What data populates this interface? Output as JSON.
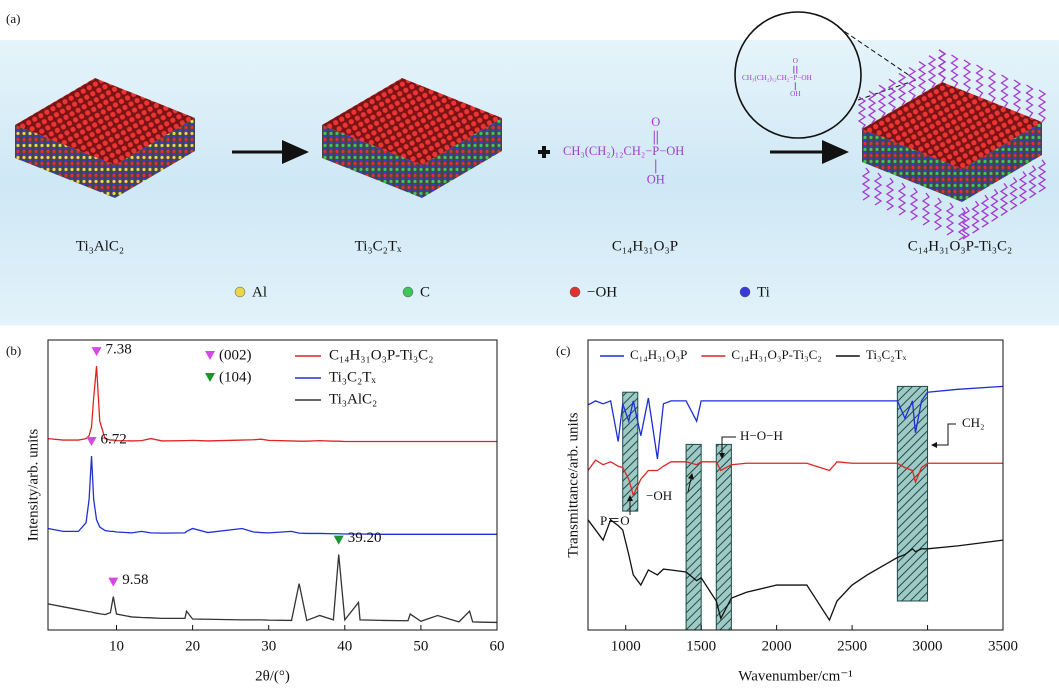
{
  "panel_labels": [
    "(a)",
    "(b)",
    "(c)"
  ],
  "schematic": {
    "compounds": [
      "Ti₃AlC₂",
      "Ti₃C₂Tₓ",
      "C₁₄H₃₁O₃P",
      "C₁₄H₃₁O₃P-Ti₃C₂"
    ],
    "molecule": {
      "chain": "CH₃(CH₂)₁₂CH₂−",
      "p": "P",
      "oh_right": "−OH",
      "top": "O",
      "bottom": "OH"
    },
    "atoms": [
      {
        "label": "Al",
        "color": "#e9d64c"
      },
      {
        "label": "C",
        "color": "#3fc65a"
      },
      {
        "label": "−OH",
        "color": "#e23030"
      },
      {
        "label": "Ti",
        "color": "#3a3ad8"
      }
    ]
  },
  "chart_data": [
    {
      "type": "line",
      "x_label": "2θ/(°)",
      "y_label": "Intensity/arb. units",
      "xlim": [
        1,
        60
      ],
      "ylim": [
        0,
        100
      ],
      "xticks": [
        10,
        20,
        30,
        40,
        50,
        60
      ],
      "legend": "upper right",
      "x": [
        1,
        3,
        5,
        6,
        6.4,
        6.72,
        7,
        7.38,
        7.8,
        8.5,
        9.2,
        9.58,
        10,
        12,
        13.3,
        14.5,
        16,
        19,
        19.2,
        20,
        22,
        26.5,
        28,
        29,
        30,
        33,
        34,
        35,
        36.7,
        38.5,
        39.2,
        40,
        41.8,
        42,
        45,
        48.3,
        48.6,
        50,
        52.2,
        55,
        56.4,
        56.8,
        58,
        60
      ],
      "series": [
        {
          "name": "C₁₄H₃₁O₃P-Ti₃C₂",
          "color": "#e02424",
          "values": [
            66,
            65.5,
            65.5,
            66,
            67,
            70,
            80,
            91,
            72,
            66,
            65.5,
            65.5,
            65.3,
            65.2,
            65.3,
            66,
            65.2,
            65.3,
            65.3,
            65.4,
            65.2,
            65.5,
            65.6,
            65.8,
            65.4,
            65.2,
            65.1,
            65.1,
            65.3,
            65.1,
            65.1,
            65,
            65,
            65,
            65,
            65,
            65,
            65,
            65,
            65,
            65,
            65,
            65,
            65
          ],
          "peaks": [
            {
              "value": 7.38,
              "color": "#d548e6"
            }
          ]
        },
        {
          "name": "Ti₃C₂Tₓ",
          "color": "#2030d0",
          "values": [
            35,
            34,
            34,
            37,
            45,
            60,
            45,
            38,
            35.5,
            34.3,
            34,
            34,
            33.8,
            33.5,
            34,
            33.5,
            33.4,
            33.5,
            34,
            35,
            33.6,
            35,
            33.8,
            33.6,
            33.5,
            34,
            33.4,
            33.3,
            33.3,
            33.2,
            33.2,
            33.1,
            33.1,
            33.1,
            33,
            33,
            33,
            33,
            33,
            33,
            33,
            33,
            33,
            33
          ],
          "peaks": [
            {
              "value": 6.72,
              "color": "#d548e6"
            }
          ]
        },
        {
          "name": "Ti₃AlC₂",
          "color": "#333333",
          "values": [
            9,
            8,
            7,
            6.5,
            6.3,
            6.2,
            6,
            5.8,
            5.6,
            5.3,
            6,
            11.5,
            5.5,
            4.5,
            4.3,
            4.2,
            4,
            4,
            6.5,
            3.8,
            3.7,
            3.5,
            3.5,
            3.5,
            3.4,
            3.3,
            16,
            3.3,
            5,
            3.5,
            26,
            3.5,
            9.5,
            3.5,
            3.3,
            3.2,
            5.5,
            3,
            5,
            2.8,
            6.5,
            2.8,
            2.7,
            2.6
          ],
          "peaks": [
            {
              "value": 9.58,
              "color": "#d548e6"
            },
            {
              "value": 39.2,
              "label": "39.20",
              "color": "#17962b"
            }
          ]
        }
      ],
      "peak_markers": [
        {
          "label": "(002)",
          "color": "#d548e6"
        },
        {
          "label": "(104)",
          "color": "#17962b"
        }
      ]
    },
    {
      "type": "line",
      "x_label": "Wavenumber/cm⁻¹",
      "y_label": "Transmittance/arb. units",
      "xlim": [
        750,
        3500
      ],
      "ylim": [
        0,
        100
      ],
      "xticks": [
        1000,
        1500,
        2000,
        2500,
        3000,
        3500
      ],
      "legend": "upper center",
      "x": [
        750,
        800,
        850,
        900,
        950,
        980,
        1020,
        1050,
        1100,
        1150,
        1210,
        1250,
        1300,
        1400,
        1470,
        1500,
        1600,
        1630,
        1700,
        1800,
        2000,
        2200,
        2350,
        2400,
        2500,
        2600,
        2800,
        2850,
        2900,
        2920,
        2960,
        3000,
        3200,
        3500
      ],
      "series": [
        {
          "name": "C₁₄H₃₁O₃P",
          "color": "#1f2fd6",
          "values": [
            77.6,
            79,
            78,
            79,
            65,
            78,
            72,
            79,
            67,
            80,
            59,
            78,
            79,
            79,
            72,
            79,
            79,
            79,
            79,
            79,
            79,
            79,
            79,
            79,
            79,
            79,
            79,
            73,
            79,
            68,
            79,
            82,
            83,
            84
          ]
        },
        {
          "name": "C₁₄H₃₁O₃P-Ti₃C₂",
          "color": "#e02424",
          "values": [
            55,
            58.6,
            57,
            58,
            56.5,
            56,
            52,
            46.5,
            52,
            55,
            55,
            56.5,
            58,
            58,
            57,
            58,
            58,
            55,
            57,
            57.5,
            57.5,
            57.5,
            55,
            58,
            57.5,
            57.5,
            57.5,
            56,
            55,
            51,
            56,
            57.5,
            57.5,
            57.5
          ]
        },
        {
          "name": "Ti₃C₂Tₓ",
          "color": "#111111",
          "values": [
            38,
            34.5,
            31,
            38,
            36,
            34.5,
            26,
            19,
            15.5,
            20.7,
            19,
            21,
            20.7,
            20,
            17,
            18,
            10,
            4,
            11,
            13,
            15.5,
            15.5,
            3.4,
            10,
            15.5,
            19,
            25,
            26,
            28,
            27,
            28,
            28,
            29,
            31
          ]
        }
      ],
      "highlight_regions": [
        {
          "x": [
            980,
            1080
          ],
          "y": [
            41,
            82
          ]
        },
        {
          "x": [
            1400,
            1500
          ],
          "y": [
            0,
            64
          ]
        },
        {
          "x": [
            1600,
            1700
          ],
          "y": [
            0,
            64
          ]
        },
        {
          "x": [
            2800,
            3000
          ],
          "y": [
            10,
            84
          ]
        }
      ],
      "annotations": [
        "P＝O",
        "−OH",
        "H−O−H",
        "CH₂"
      ]
    }
  ]
}
